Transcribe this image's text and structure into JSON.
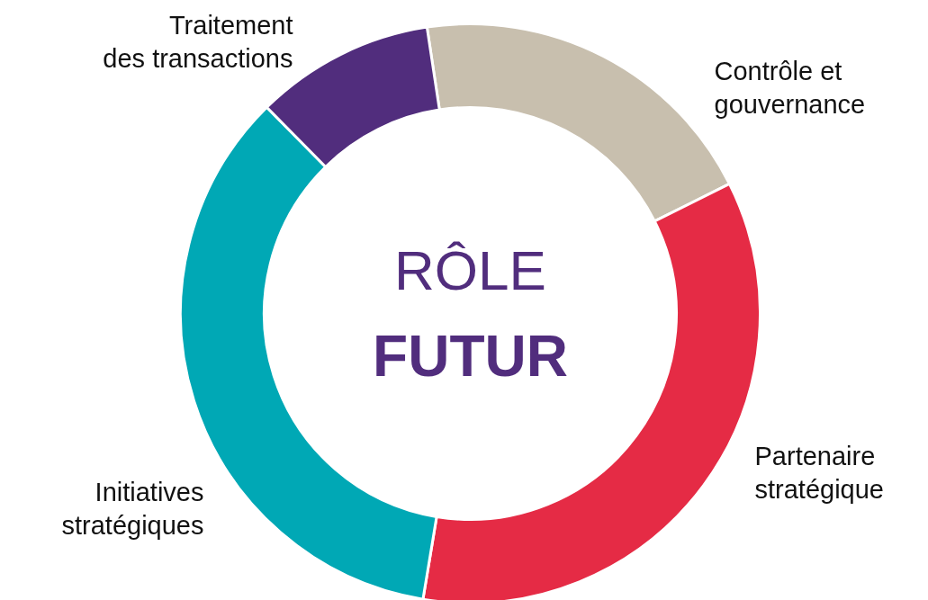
{
  "chart_data": {
    "type": "donut",
    "title": "RÔLE",
    "subtitle": "FUTUR",
    "categories": [
      "Contrôle et\ngouvernance",
      "Partenaire\nstratégique",
      "Initiatives\nstratégiques",
      "Traitement\ndes transactions"
    ],
    "values": [
      20,
      35,
      35,
      10
    ],
    "colors": [
      "#c8bfae",
      "#e52b45",
      "#00a8b5",
      "#512d7d"
    ]
  }
}
